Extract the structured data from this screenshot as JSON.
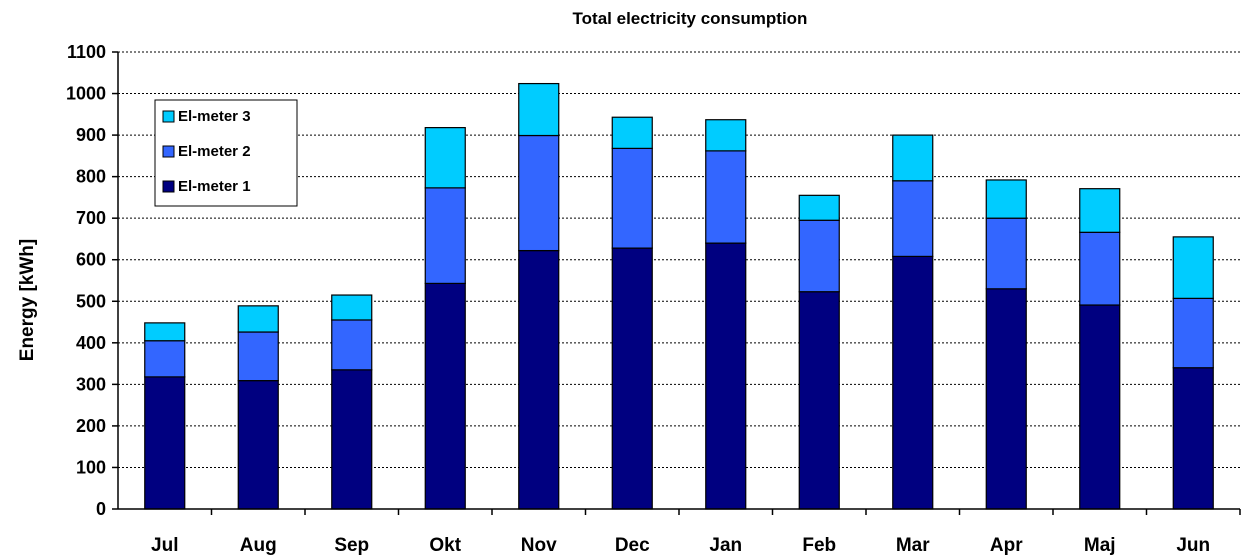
{
  "chart_data": {
    "type": "bar",
    "stacked": true,
    "title": "Total electricity consumption",
    "xlabel": "",
    "ylabel": "Energy [kWh]",
    "ylim": [
      0,
      1100
    ],
    "yticks": [
      0,
      100,
      200,
      300,
      400,
      500,
      600,
      700,
      800,
      900,
      1000,
      1100
    ],
    "grid": true,
    "legend_position": "top-left",
    "categories": [
      "Jul",
      "Aug",
      "Sep",
      "Okt",
      "Nov",
      "Dec",
      "Jan",
      "Feb",
      "Mar",
      "Apr",
      "Maj",
      "Jun"
    ],
    "series": [
      {
        "name": "El-meter 1",
        "color": "#000080",
        "values": [
          318,
          309,
          335,
          543,
          622,
          628,
          640,
          523,
          608,
          530,
          491,
          340
        ]
      },
      {
        "name": "El-meter 2",
        "color": "#3366ff",
        "values": [
          87,
          117,
          120,
          230,
          277,
          240,
          222,
          172,
          182,
          170,
          175,
          167
        ]
      },
      {
        "name": "El-meter 3",
        "color": "#00ccff",
        "values": [
          43,
          63,
          60,
          145,
          125,
          75,
          75,
          60,
          110,
          92,
          105,
          148
        ]
      }
    ],
    "legend_order": [
      "El-meter 3",
      "El-meter 2",
      "El-meter 1"
    ]
  }
}
